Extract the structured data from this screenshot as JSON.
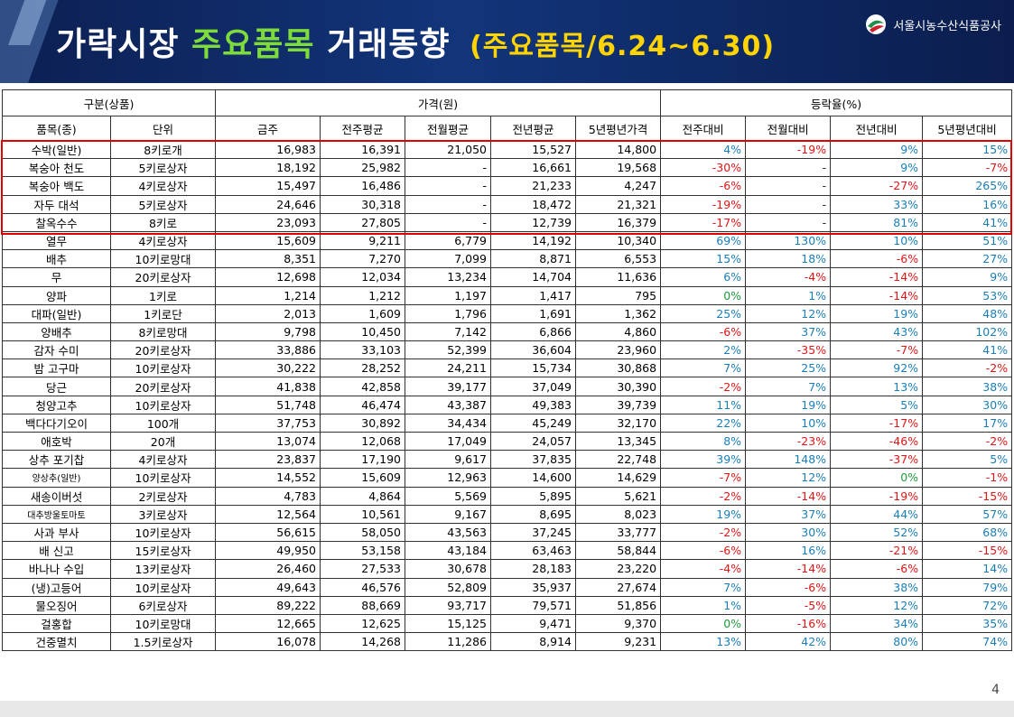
{
  "header": {
    "title_main": "가락시장",
    "title_highlight": "주요품목",
    "title_rest": "거래동향",
    "title_sub": "(주요품목/6.24~6.30)",
    "org_name": "서울시농수산식품공사"
  },
  "table": {
    "group_headers": [
      "구분(상품)",
      "가격(원)",
      "등락율(%)"
    ],
    "columns": [
      "품목(종)",
      "단위",
      "금주",
      "전주평균",
      "전월평균",
      "전년평균",
      "5년평년가격",
      "전주대비",
      "전월대비",
      "전년대비",
      "5년평년대비"
    ],
    "rows": [
      [
        "수박(일반)",
        "8키로개",
        "16,983",
        "16,391",
        "21,050",
        "15,527",
        "14,800",
        "4%",
        "-19%",
        "9%",
        "15%"
      ],
      [
        "복숭아 천도",
        "5키로상자",
        "18,192",
        "25,982",
        "-",
        "16,661",
        "19,568",
        "-30%",
        "-",
        "9%",
        "-7%"
      ],
      [
        "복숭아 백도",
        "4키로상자",
        "15,497",
        "16,486",
        "-",
        "21,233",
        "4,247",
        "-6%",
        "-",
        "-27%",
        "265%"
      ],
      [
        "자두 대석",
        "5키로상자",
        "24,646",
        "30,318",
        "-",
        "18,472",
        "21,321",
        "-19%",
        "-",
        "33%",
        "16%"
      ],
      [
        "찰옥수수",
        "8키로",
        "23,093",
        "27,805",
        "-",
        "12,739",
        "16,379",
        "-17%",
        "-",
        "81%",
        "41%"
      ],
      [
        "열무",
        "4키로상자",
        "15,609",
        "9,211",
        "6,779",
        "14,192",
        "10,340",
        "69%",
        "130%",
        "10%",
        "51%"
      ],
      [
        "배추",
        "10키로망대",
        "8,351",
        "7,270",
        "7,099",
        "8,871",
        "6,553",
        "15%",
        "18%",
        "-6%",
        "27%"
      ],
      [
        "무",
        "20키로상자",
        "12,698",
        "12,034",
        "13,234",
        "14,704",
        "11,636",
        "6%",
        "-4%",
        "-14%",
        "9%"
      ],
      [
        "양파",
        "1키로",
        "1,214",
        "1,212",
        "1,197",
        "1,417",
        "795",
        "0%",
        "1%",
        "-14%",
        "53%"
      ],
      [
        "대파(일반)",
        "1키로단",
        "2,013",
        "1,609",
        "1,796",
        "1,691",
        "1,362",
        "25%",
        "12%",
        "19%",
        "48%"
      ],
      [
        "양배추",
        "8키로망대",
        "9,798",
        "10,450",
        "7,142",
        "6,866",
        "4,860",
        "-6%",
        "37%",
        "43%",
        "102%"
      ],
      [
        "감자 수미",
        "20키로상자",
        "33,886",
        "33,103",
        "52,399",
        "36,604",
        "23,960",
        "2%",
        "-35%",
        "-7%",
        "41%"
      ],
      [
        "밤 고구마",
        "10키로상자",
        "30,222",
        "28,252",
        "24,211",
        "15,734",
        "30,868",
        "7%",
        "25%",
        "92%",
        "-2%"
      ],
      [
        "당근",
        "20키로상자",
        "41,838",
        "42,858",
        "39,177",
        "37,049",
        "30,390",
        "-2%",
        "7%",
        "13%",
        "38%"
      ],
      [
        "청양고추",
        "10키로상자",
        "51,748",
        "46,474",
        "43,387",
        "49,383",
        "39,739",
        "11%",
        "19%",
        "5%",
        "30%"
      ],
      [
        "백다다기오이",
        "100개",
        "37,753",
        "30,892",
        "34,434",
        "45,249",
        "32,170",
        "22%",
        "10%",
        "-17%",
        "17%"
      ],
      [
        "애호박",
        "20개",
        "13,074",
        "12,068",
        "17,049",
        "24,057",
        "13,345",
        "8%",
        "-23%",
        "-46%",
        "-2%"
      ],
      [
        "상추 포기찹",
        "4키로상자",
        "23,837",
        "17,190",
        "9,617",
        "37,835",
        "22,748",
        "39%",
        "148%",
        "-37%",
        "5%"
      ],
      [
        "양상추(일반)",
        "10키로상자",
        "14,552",
        "15,609",
        "12,963",
        "14,600",
        "14,629",
        "-7%",
        "12%",
        "0%",
        "-1%"
      ],
      [
        "새송이버섯",
        "2키로상자",
        "4,783",
        "4,864",
        "5,569",
        "5,895",
        "5,621",
        "-2%",
        "-14%",
        "-19%",
        "-15%"
      ],
      [
        "대추방울토마토",
        "3키로상자",
        "12,564",
        "10,561",
        "9,167",
        "8,695",
        "8,023",
        "19%",
        "37%",
        "44%",
        "57%"
      ],
      [
        "사과 부사",
        "10키로상자",
        "56,615",
        "58,050",
        "43,563",
        "37,245",
        "33,777",
        "-2%",
        "30%",
        "52%",
        "68%"
      ],
      [
        "배 신고",
        "15키로상자",
        "49,950",
        "53,158",
        "43,184",
        "63,463",
        "58,844",
        "-6%",
        "16%",
        "-21%",
        "-15%"
      ],
      [
        "바나나 수입",
        "13키로상자",
        "26,460",
        "27,533",
        "30,678",
        "28,183",
        "23,220",
        "-4%",
        "-14%",
        "-6%",
        "14%"
      ],
      [
        "(냉)고등어",
        "10키로상자",
        "49,643",
        "46,576",
        "52,809",
        "35,937",
        "27,674",
        "7%",
        "-6%",
        "38%",
        "79%"
      ],
      [
        "물오징어",
        "6키로상자",
        "89,222",
        "88,669",
        "93,717",
        "79,571",
        "51,856",
        "1%",
        "-5%",
        "12%",
        "72%"
      ],
      [
        "걸홍합",
        "10키로망대",
        "12,665",
        "12,625",
        "15,125",
        "9,471",
        "9,370",
        "0%",
        "-16%",
        "34%",
        "35%"
      ],
      [
        "건중멸치",
        "1.5키로상자",
        "16,078",
        "14,268",
        "11,286",
        "8,914",
        "9,231",
        "13%",
        "42%",
        "80%",
        "74%"
      ]
    ]
  },
  "colors": {
    "positive": "#1a7fb8",
    "negative": "#e01616",
    "zero": "#1f9a3a",
    "highlight_box": "#e00000",
    "title_highlight": "#7ddb3a",
    "title_sub": "#ffd400"
  },
  "page_number": "4"
}
